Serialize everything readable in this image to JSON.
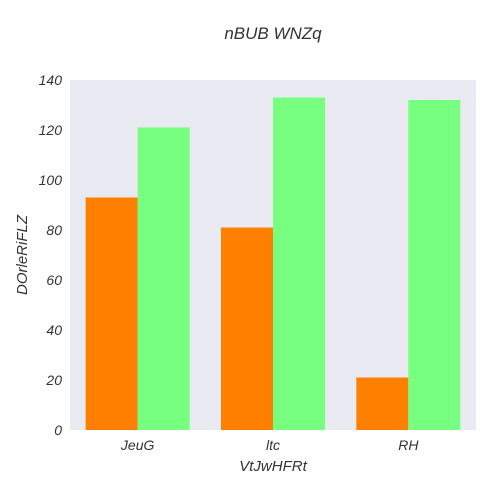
{
  "chart_data": {
    "type": "bar",
    "title": "nBUB  WNZq",
    "xlabel": "VtJwHFRt",
    "ylabel": "DOrleRiFLZ",
    "categories": [
      "JeuG",
      "ltc",
      "RH"
    ],
    "series": [
      {
        "color": "#ff7f00",
        "values": [
          93,
          81,
          21
        ]
      },
      {
        "color": "#77ff80",
        "values": [
          121,
          133,
          132
        ]
      }
    ],
    "ylim": [
      0,
      140
    ],
    "yticks": [
      0,
      20,
      40,
      60,
      80,
      100,
      120,
      140
    ],
    "grid": false,
    "legend": "none",
    "plot_background": "#eaeaf2"
  }
}
